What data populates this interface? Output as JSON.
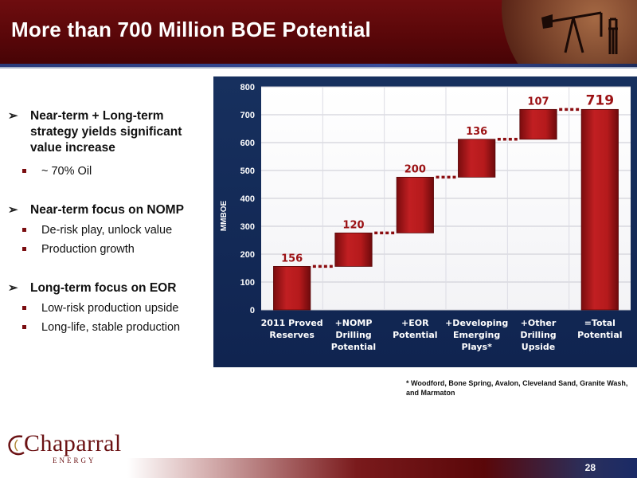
{
  "slide": {
    "title": "More than 700 Million BOE Potential",
    "page_number": "28",
    "footnote": "* Woodford, Bone Spring, Avalon, Cleveland Sand, Granite Wash, and Marmaton"
  },
  "bullets": [
    {
      "text": "Near-term + Long-term strategy yields significant value increase",
      "subs": [
        "~ 70% Oil"
      ]
    },
    {
      "text": "Near-term focus on NOMP",
      "subs": [
        "De-risk play, unlock value",
        "Production growth"
      ]
    },
    {
      "text": "Long-term focus on EOR",
      "subs": [
        "Low-risk production upside",
        "Long-life, stable production"
      ]
    }
  ],
  "logo": {
    "name": "Chaparral",
    "sub": "ENERGY"
  },
  "colors": {
    "brand_maroon": "#5a0709",
    "bar_red": "#b01a1c",
    "label_red": "#9b1013",
    "plot_bg": "#ffffff",
    "panel_bg": "#102450"
  },
  "chart_data": {
    "type": "bar",
    "subtype": "waterfall",
    "ylabel": "MMBOE",
    "ylim": [
      0,
      800
    ],
    "yticks": [
      0,
      100,
      200,
      300,
      400,
      500,
      600,
      700,
      800
    ],
    "grid": true,
    "categories": [
      [
        "2011 Proved",
        "Reserves"
      ],
      [
        "+NOMP",
        "Drilling",
        "Potential"
      ],
      [
        "+EOR",
        "Potential"
      ],
      [
        "+Developing",
        "Emerging",
        "Plays*"
      ],
      [
        "+Other",
        "Drilling",
        "Upside"
      ],
      [
        "=Total",
        "Potential"
      ]
    ],
    "values": [
      156,
      120,
      200,
      136,
      107,
      719
    ],
    "bases": [
      0,
      156,
      276,
      476,
      612,
      0
    ],
    "labels": [
      "156",
      "120",
      "200",
      "136",
      "107",
      "719"
    ]
  }
}
